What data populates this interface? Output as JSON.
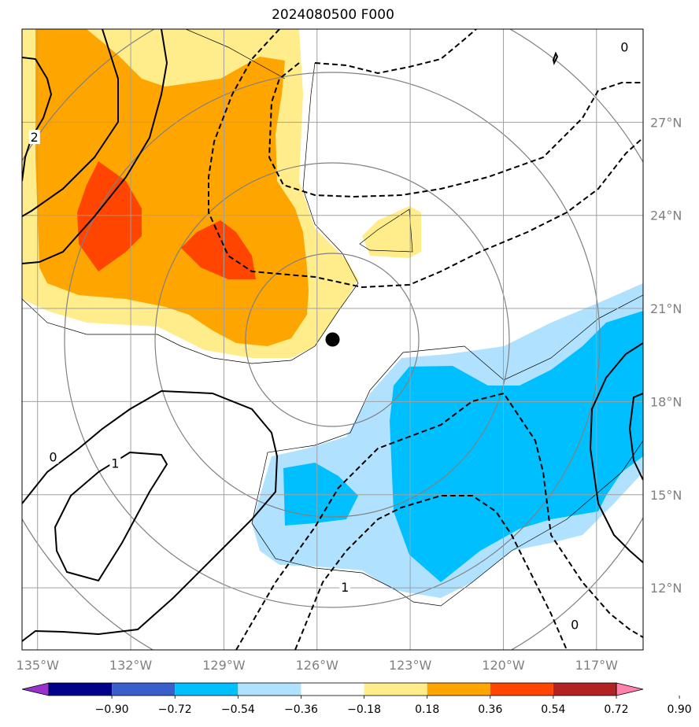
{
  "title": "2024080500 F000",
  "chart_data": {
    "type": "map",
    "lon_range": [
      -135.5,
      -115.5
    ],
    "lat_range": [
      10,
      30
    ],
    "lon_ticks": [
      {
        "value": -135,
        "label": "135°W"
      },
      {
        "value": -132,
        "label": "132°W"
      },
      {
        "value": -129,
        "label": "129°W"
      },
      {
        "value": -126,
        "label": "126°W"
      },
      {
        "value": -123,
        "label": "123°W"
      },
      {
        "value": -120,
        "label": "120°W"
      },
      {
        "value": -117,
        "label": "117°W"
      }
    ],
    "lat_ticks": [
      {
        "value": 27,
        "label": "27°N"
      },
      {
        "value": 24,
        "label": "24°N"
      },
      {
        "value": 21,
        "label": "21°N"
      },
      {
        "value": 18,
        "label": "18°N"
      },
      {
        "value": 15,
        "label": "15°N"
      },
      {
        "value": 12,
        "label": "12°N"
      }
    ],
    "center_marker": {
      "lon": -125.5,
      "lat": 20
    },
    "contour_labels": [
      {
        "text": "2",
        "lon": -135.1,
        "lat": 26.5
      },
      {
        "text": "0",
        "lon": -134.5,
        "lat": 16.2
      },
      {
        "text": "1",
        "lon": -132.5,
        "lat": 16.0
      },
      {
        "text": "0",
        "lon": -117.7,
        "lat": 10.8
      },
      {
        "text": "0",
        "lon": -116.1,
        "lat": 29.4
      },
      {
        "text": "1",
        "lon": -125.1,
        "lat": 12.0
      }
    ],
    "colorbar": {
      "colors": [
        "#9932cc",
        "#00008b",
        "#3a5fcd",
        "#00bfff",
        "#b0e2ff",
        "#ffffff",
        "#ffec8b",
        "#ffa500",
        "#ff4500",
        "#b22222",
        "#ff82ab"
      ],
      "labels": [
        "−0.90",
        "−0.72",
        "−0.54",
        "−0.36",
        "−0.18",
        "0.18",
        "0.36",
        "0.54",
        "0.72",
        "0.90"
      ]
    }
  }
}
